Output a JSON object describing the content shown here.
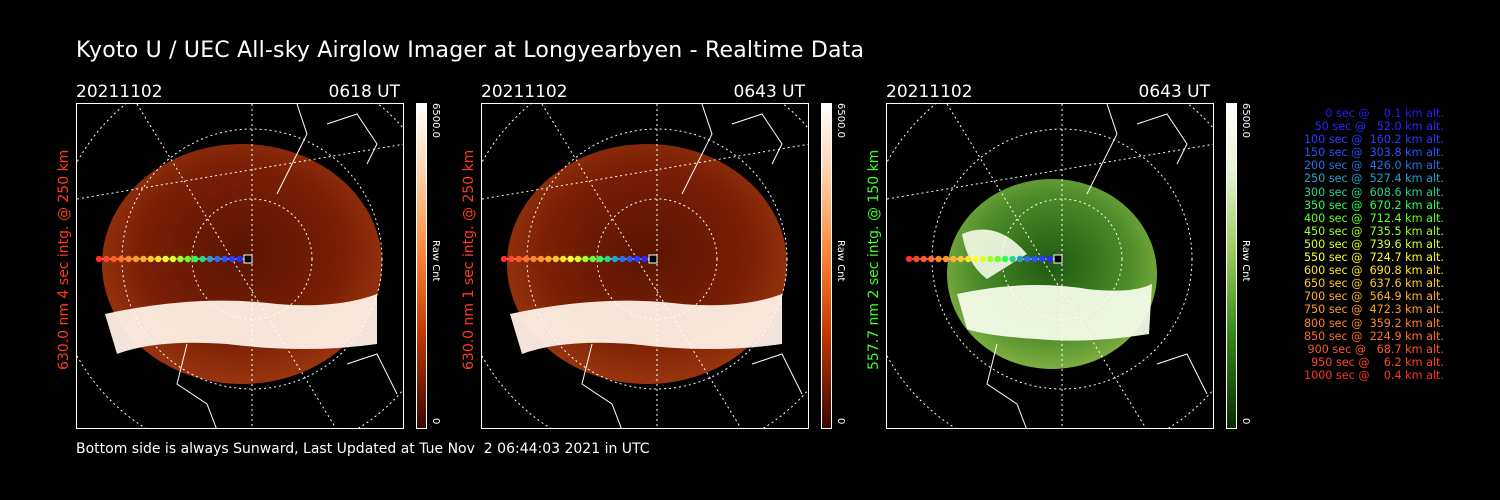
{
  "title": "Kyoto U / UEC All-sky Airglow Imager at Longyearbyen - Realtime Data",
  "footer": "Bottom side is always Sunward, Last Updated at Tue Nov  2 06:44:03 2021 in UTC",
  "panels": [
    {
      "date": "20211102",
      "time": "0618 UT",
      "side_label": "630.0 nm  4 sec intg. @ 250 km",
      "side_color": "#ff3b1e",
      "colorbar_max": "6500.0",
      "colorbar_min": "0",
      "colorbar_unit": "Raw Cnt",
      "colormap": "red"
    },
    {
      "date": "20211102",
      "time": "0643 UT",
      "side_label": "630.0 nm  1 sec intg. @ 250 km",
      "side_color": "#ff3b1e",
      "colorbar_max": "6500.0",
      "colorbar_min": "0",
      "colorbar_unit": "Raw Cnt",
      "colormap": "red"
    },
    {
      "date": "20211102",
      "time": "0643 UT",
      "side_label": "557.7 nm  2 sec intg. @ 150 km",
      "side_color": "#3cff2a",
      "colorbar_max": "6500.0",
      "colorbar_min": "0",
      "colorbar_unit": "Raw Cnt",
      "colormap": "green"
    }
  ],
  "legend": [
    {
      "text": "0 sec @    0.1 km alt.",
      "color": "#2a18ff"
    },
    {
      "text": "50 sec @   52.0 km alt.",
      "color": "#2a28ff"
    },
    {
      "text": "100 sec @  160.2 km alt.",
      "color": "#2a3cff"
    },
    {
      "text": "150 sec @  303.8 km alt.",
      "color": "#2a52ff"
    },
    {
      "text": "200 sec @  426.0 km alt.",
      "color": "#2a70e8"
    },
    {
      "text": "250 sec @  527.4 km alt.",
      "color": "#2aa0c8"
    },
    {
      "text": "300 sec @  608.6 km alt.",
      "color": "#2ad28c"
    },
    {
      "text": "350 sec @  670.2 km alt.",
      "color": "#2aff50"
    },
    {
      "text": "400 sec @  712.4 km alt.",
      "color": "#66ff2a"
    },
    {
      "text": "450 sec @  735.5 km alt.",
      "color": "#a0ff2a"
    },
    {
      "text": "500 sec @  739.6 km alt.",
      "color": "#d8ff2a"
    },
    {
      "text": "550 sec @  724.7 km alt.",
      "color": "#ffff2a"
    },
    {
      "text": "600 sec @  690.8 km alt.",
      "color": "#ffe22a"
    },
    {
      "text": "650 sec @  637.6 km alt.",
      "color": "#ffc82a"
    },
    {
      "text": "700 sec @  564.9 km alt.",
      "color": "#ffb02a"
    },
    {
      "text": "750 sec @  472.3 km alt.",
      "color": "#ff9a2a"
    },
    {
      "text": "800 sec @  359.2 km alt.",
      "color": "#ff842a"
    },
    {
      "text": "850 sec @  224.9 km alt.",
      "color": "#ff6e2a"
    },
    {
      "text": "900 sec @   68.7 km alt.",
      "color": "#ff582a"
    },
    {
      "text": "950 sec @    6.2 km alt.",
      "color": "#ff442a"
    },
    {
      "text": "1000 sec @    0.4 km alt.",
      "color": "#ff302a"
    }
  ]
}
